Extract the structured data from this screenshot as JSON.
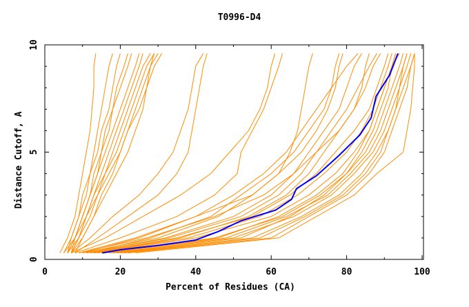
{
  "chart_data": {
    "type": "line",
    "title": "T0996-D4",
    "xlabel": "Percent of Residues (CA)",
    "ylabel": "Distance Cutoff, A",
    "xlim": [
      0,
      100
    ],
    "ylim": [
      0,
      10
    ],
    "xticks": [
      0,
      20,
      40,
      60,
      80,
      100
    ],
    "yticks": [
      0,
      5,
      10
    ],
    "grid": false,
    "legend": "none",
    "colors": {
      "others": "#ff8c00",
      "highlight": "#0000ff",
      "axis": "#000000"
    },
    "orange_y": [
      0.3,
      1,
      2,
      3,
      4,
      5,
      6,
      7,
      8,
      9,
      9.6
    ],
    "orange_series_x": [
      [
        4,
        6,
        8,
        9,
        10,
        11,
        12,
        12.5,
        13,
        13,
        13.5
      ],
      [
        5,
        7,
        9,
        10,
        12,
        13,
        14,
        15,
        16,
        17,
        18
      ],
      [
        6,
        7,
        9,
        11,
        12,
        14,
        15,
        17,
        18,
        19,
        20
      ],
      [
        5,
        8,
        10,
        12,
        14,
        15,
        17,
        18,
        19,
        21,
        22
      ],
      [
        6,
        8,
        10,
        12,
        13,
        15,
        16,
        18,
        20,
        22,
        23
      ],
      [
        7,
        8,
        10,
        12,
        14,
        16,
        18,
        20,
        22,
        24,
        25
      ],
      [
        7,
        9,
        11,
        13,
        15,
        17,
        19,
        21,
        23,
        25,
        26
      ],
      [
        6,
        8,
        11,
        13,
        16,
        18,
        20,
        22,
        24,
        26,
        28
      ],
      [
        7,
        9,
        12,
        14,
        16,
        19,
        21,
        23,
        25,
        27,
        29
      ],
      [
        8,
        10,
        13,
        15,
        18,
        20,
        22,
        24,
        26,
        28,
        30
      ],
      [
        6,
        9,
        11,
        14,
        17,
        20,
        22,
        25,
        27,
        29,
        31
      ],
      [
        7,
        10,
        13,
        16,
        19,
        22,
        24,
        26,
        27,
        28,
        29
      ],
      [
        7,
        12,
        18,
        25,
        30,
        34,
        36,
        38,
        39,
        40,
        42
      ],
      [
        8,
        14,
        22,
        30,
        35,
        38,
        39,
        40,
        41,
        42,
        43
      ],
      [
        7,
        16,
        26,
        36,
        44,
        49,
        54,
        57,
        59,
        60,
        61
      ],
      [
        8,
        20,
        35,
        45,
        51,
        52,
        55,
        58,
        60,
        62,
        63
      ],
      [
        9,
        24,
        40,
        55,
        62,
        65,
        67,
        68,
        69,
        70,
        71
      ],
      [
        12,
        35,
        55,
        65,
        72,
        77,
        82,
        86,
        88,
        90,
        91
      ],
      [
        14,
        40,
        60,
        70,
        77,
        82,
        86,
        88,
        90,
        92,
        93
      ],
      [
        15,
        45,
        63,
        73,
        80,
        85,
        88,
        90,
        92,
        94,
        95
      ],
      [
        18,
        50,
        66,
        76,
        82,
        87,
        90,
        92,
        94,
        96,
        97
      ],
      [
        20,
        55,
        68,
        78,
        84,
        88,
        91,
        93,
        95,
        97,
        98
      ],
      [
        22,
        60,
        70,
        80,
        86,
        90,
        92,
        94,
        96,
        97,
        98
      ],
      [
        24,
        62,
        72,
        82,
        88,
        95,
        96,
        97,
        97.5,
        98,
        98
      ],
      [
        16,
        48,
        64,
        75,
        81,
        86,
        89,
        91,
        93,
        95,
        96
      ],
      [
        19,
        52,
        65,
        74,
        80,
        84,
        87,
        89,
        91,
        92,
        93
      ],
      [
        13,
        38,
        57,
        67,
        74,
        80,
        84,
        87,
        89,
        91,
        92
      ],
      [
        21,
        57,
        69,
        79,
        85,
        89,
        91,
        93,
        94,
        95,
        96
      ],
      [
        17,
        46,
        62,
        72,
        79,
        83,
        86,
        88,
        90,
        92,
        94
      ],
      [
        10,
        30,
        46,
        55,
        62,
        68,
        72,
        75,
        77,
        78,
        79
      ],
      [
        11,
        32,
        50,
        60,
        66,
        70,
        74,
        78,
        80,
        82,
        84
      ],
      [
        12,
        28,
        44,
        52,
        60,
        66,
        70,
        74,
        76,
        77,
        78
      ],
      [
        10,
        25,
        40,
        50,
        58,
        64,
        68,
        72,
        76,
        80,
        83
      ],
      [
        11,
        33,
        52,
        62,
        68,
        72,
        76,
        80,
        83,
        86,
        88
      ],
      [
        13,
        36,
        54,
        64,
        70,
        74,
        78,
        82,
        85,
        87,
        89
      ],
      [
        9,
        27,
        45,
        58,
        66,
        72,
        78,
        82,
        84,
        85,
        86
      ]
    ],
    "highlight_series": [
      [
        15.2,
        0.3
      ],
      [
        20,
        0.45
      ],
      [
        30,
        0.65
      ],
      [
        39.9,
        0.9
      ],
      [
        46,
        1.3
      ],
      [
        52,
        1.8
      ],
      [
        61.2,
        2.3
      ],
      [
        65.4,
        2.8
      ],
      [
        66.7,
        3.3
      ],
      [
        72,
        3.9
      ],
      [
        77.7,
        4.8
      ],
      [
        83.5,
        5.8
      ],
      [
        86.5,
        6.6
      ],
      [
        87.8,
        7.6
      ],
      [
        91.4,
        8.6
      ],
      [
        93.6,
        9.6
      ]
    ]
  }
}
